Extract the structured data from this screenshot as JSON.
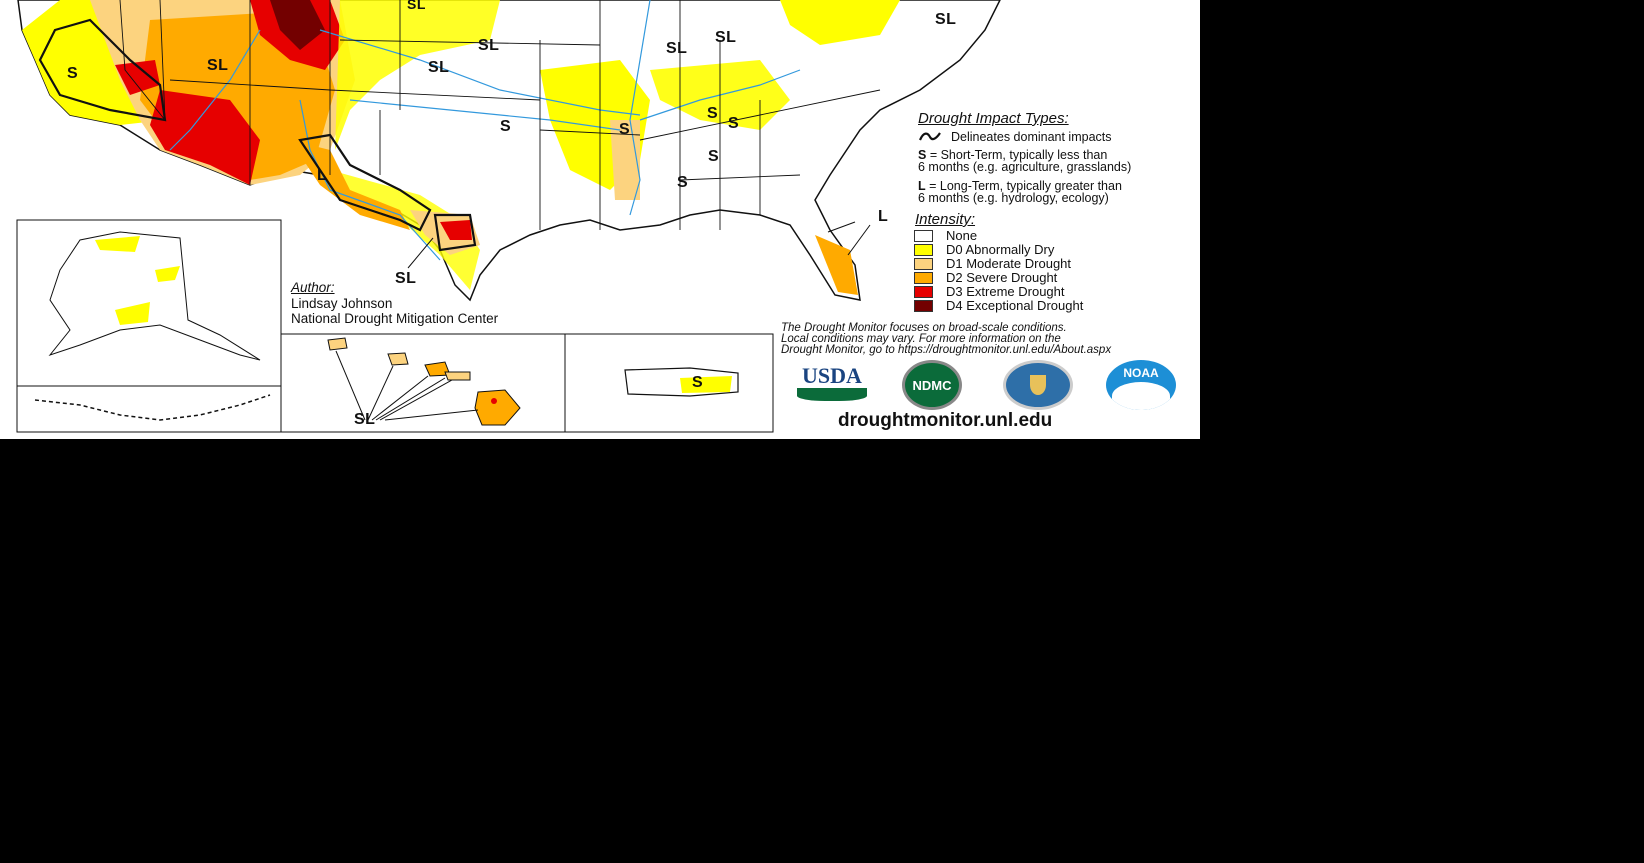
{
  "impact": {
    "title": "Drought Impact Types:",
    "delineates": "Delineates dominant impacts",
    "short_key": "S",
    "short_line1": " = Short-Term, typically less than",
    "short_line2": "6 months (e.g. agriculture, grasslands)",
    "long_key": "L",
    "long_line1": " = Long-Term, typically greater than",
    "long_line2": "6 months (e.g. hydrology, ecology)"
  },
  "intensity": {
    "title": "Intensity:",
    "items": [
      {
        "label": "None",
        "color": "#ffffff"
      },
      {
        "label": "D0 Abnormally Dry",
        "color": "#ffff00"
      },
      {
        "label": "D1 Moderate Drought",
        "color": "#fcd37f"
      },
      {
        "label": "D2 Severe Drought",
        "color": "#ffaa00"
      },
      {
        "label": "D3 Extreme Drought",
        "color": "#e60000"
      },
      {
        "label": "D4 Exceptional Drought",
        "color": "#730000"
      }
    ]
  },
  "author": {
    "heading": "Author:",
    "name": "Lindsay Johnson",
    "org": "National Drought Mitigation Center"
  },
  "note": {
    "line1": "The Drought Monitor focuses on broad-scale conditions.",
    "line2": "Local conditions may vary. For more information on the",
    "line3": "Drought Monitor, go to https://droughtmonitor.unl.edu/About.aspx"
  },
  "logos": {
    "usda": "USDA",
    "ndmc": "NDMC",
    "noaa": "NOAA"
  },
  "website": "droughtmonitor.unl.edu",
  "map_labels": {
    "l1": "SL",
    "l2": "SL",
    "l3": "SL",
    "l4": "SL",
    "l5": "SL",
    "l6": "SL",
    "l7": "S",
    "l8": "S",
    "l9": "S",
    "l10": "S",
    "l11": "S",
    "l12": "S",
    "l13": "S",
    "l14": "L",
    "l15": "SL",
    "l16": "L",
    "l17": "SL",
    "l18": "S",
    "l19": "SL"
  }
}
